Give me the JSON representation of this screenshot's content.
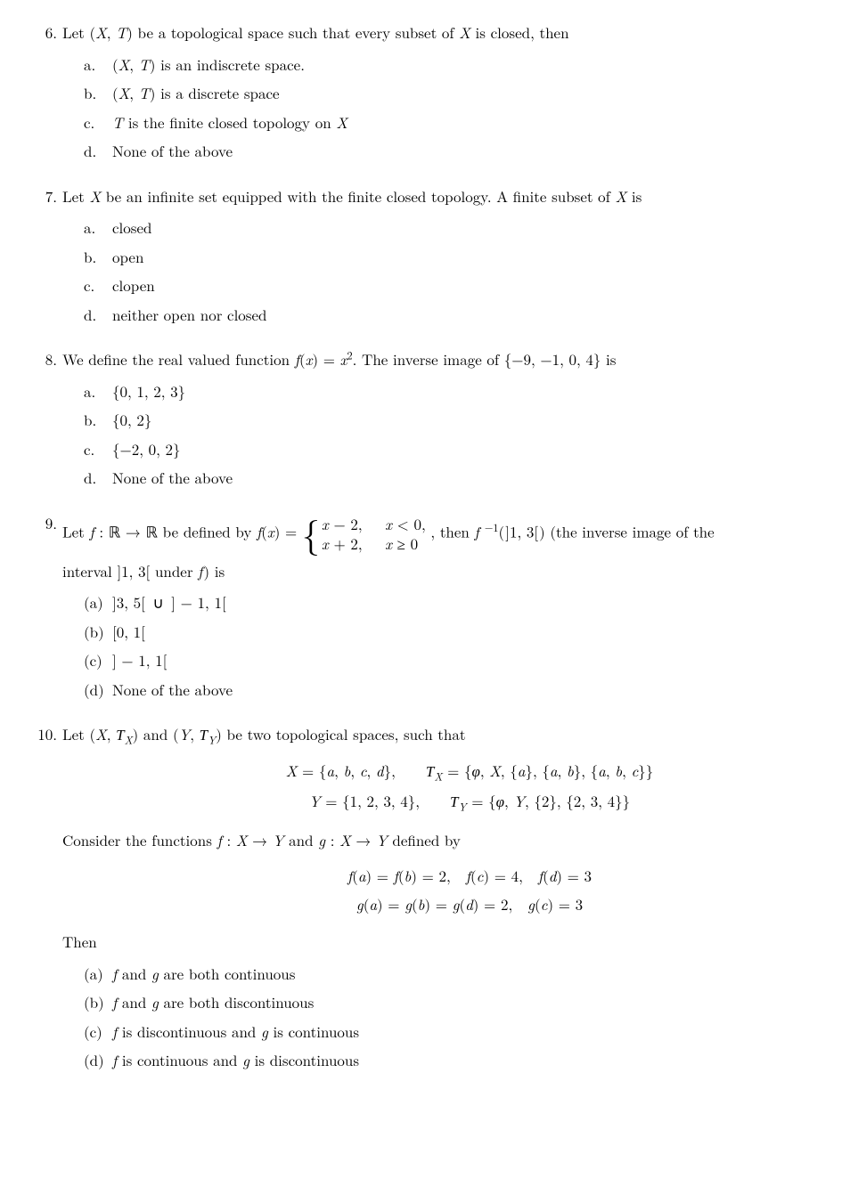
{
  "questions": [
    {
      "number": "6.",
      "prompt_html": "Let (<span class='math-i'>X</span>, <span class='math-i'>T</span>) be a topological space such that every subset of <span class='math-i'>X</span> is closed, then",
      "option_style": "alpha-dot",
      "options": [
        "(<span class='math-i'>X</span>, <span class='math-i'>T</span>) is an indiscrete space.",
        "(<span class='math-i'>X</span>, <span class='math-i'>T</span>) is a discrete space",
        "<span class='math-i'>T</span> is the finite closed topology on <span class='math-i'>X</span>",
        "None of the above"
      ]
    },
    {
      "number": "7.",
      "prompt_html": "Let <span class='math-i'>X</span> be an infinite set equipped with the finite closed topology. A finite subset of <span class='math-i'>X</span> is",
      "option_style": "alpha-dot",
      "options": [
        "closed",
        "open",
        "clopen",
        "neither open nor closed"
      ]
    },
    {
      "number": "8.",
      "prompt_html": "We define the real valued function <span class='math-i'>f</span>(<span class='math-i'>x</span>) = <span class='math-i'>x</span><sup>2</sup>. The inverse image of {−9, −1, 0, 4} is",
      "option_style": "alpha-dot",
      "options": [
        "{0, 1, 2, 3}",
        "{0, 2}",
        "{−2, 0, 2}",
        "None of the above"
      ]
    },
    {
      "number": "9.",
      "prompt_html": "Let <span class='math-i'>f</span> : <span class='bb'>ℝ</span> → <span class='bb'>ℝ</span> be defined by <span class='math-i'>f</span>(<span class='math-i'>x</span>) = <span class='piecewise'><span class='brace'>{</span><span class='piecerows'><span class='piecerow'><span class='math-i'>x</span> − 2,&nbsp;&nbsp;&nbsp;<span class='math-i'>x</span> &lt; 0,</span><span class='piecerow'><span class='math-i'>x</span> + 2,&nbsp;&nbsp;&nbsp;<span class='math-i'>x</span> ≥ 0</span></span></span> , then <span class='math-i'>f</span><sup>&nbsp;−1</sup>(&#8202;]1, 3[&#8202;) (the inverse image of the",
      "prompt_cont_html": "interval ]1, 3[ under <span class='math-i'>f</span>&#8202;) is",
      "option_style": "alpha-paren",
      "options": [
        "]3, 5[&nbsp;∪&nbsp;] − 1, 1[",
        "[0, 1[",
        "] − 1, 1[",
        "None of the above"
      ]
    },
    {
      "number": "10.",
      "prompt_html": "Let (<span class='math-i'>X</span>, <span class='cal'>T</span><sub><span class='math-i'>X</span></sub>) and (<span class='math-i'>Y</span>, <span class='cal'>T</span><sub><span class='math-i'>Y</span></sub>) be two topological spaces, such that",
      "eq1_line1_html": "<span class='math-i'>X</span> = {<span class='math-i'>a</span>, <span class='math-i'>b</span>, <span class='math-i'>c</span>, <span class='math-i'>d</span>},&nbsp;&nbsp;&nbsp;&nbsp;<span class='cal'>T</span><sub><span class='math-i'>X</span></sub> = {<span class='math-i'>φ</span>, <span class='math-i'>X</span>, {<span class='math-i'>a</span>}, {<span class='math-i'>a</span>, <span class='math-i'>b</span>}, {<span class='math-i'>a</span>, <span class='math-i'>b</span>, <span class='math-i'>c</span>}}",
      "eq1_line2_html": "<span class='math-i'>Y</span> = {1, 2, 3, 4},&nbsp;&nbsp;&nbsp;&nbsp;<span class='cal'>T</span><sub><span class='math-i'>Y</span></sub> = {<span class='math-i'>φ</span>, <span class='math-i'>Y</span>, {2}, {2, 3, 4}}",
      "mid_html": "Consider the functions <span class='math-i'>f</span> : <span class='math-i'>X</span> → <span class='math-i'>Y</span> and <span class='math-i'>g</span> : <span class='math-i'>X</span> → <span class='math-i'>Y</span> defined by",
      "eq2_line1_html": "<span class='math-i'>f</span>(<span class='math-i'>a</span>) = <span class='math-i'>f</span>(<span class='math-i'>b</span>) = 2,&nbsp;&nbsp;<span class='math-i'>f</span>(<span class='math-i'>c</span>) = 4,&nbsp;&nbsp;<span class='math-i'>f</span>(<span class='math-i'>d</span>) = 3",
      "eq2_line2_html": "<span class='math-i'>g</span>(<span class='math-i'>a</span>) = <span class='math-i'>g</span>(<span class='math-i'>b</span>) = <span class='math-i'>g</span>(<span class='math-i'>d</span>) = 2,&nbsp;&nbsp;<span class='math-i'>g</span>(<span class='math-i'>c</span>) = 3",
      "then_html": "Then",
      "option_style": "alpha-paren",
      "options": [
        "<span class='math-i'>f</span> and <span class='math-i'>g</span> are both continuous",
        "<span class='math-i'>f</span> and <span class='math-i'>g</span> are both discontinuous",
        "<span class='math-i'>f</span> is discontinuous and <span class='math-i'>g</span> is continuous",
        "<span class='math-i'>f</span> is continuous and <span class='math-i'>g</span> is discontinuous"
      ]
    }
  ],
  "option_labels": {
    "alpha-dot": [
      "a.",
      "b.",
      "c.",
      "d."
    ],
    "alpha-paren": [
      "(a)",
      "(b)",
      "(c)",
      "(d)"
    ]
  }
}
